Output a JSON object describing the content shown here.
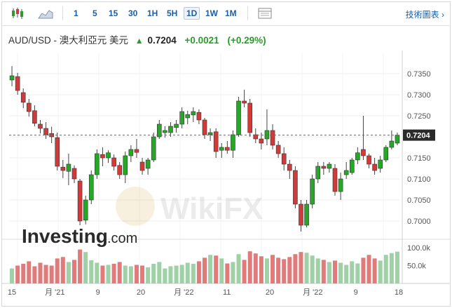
{
  "toolbar": {
    "buttons": [
      "1",
      "5",
      "15",
      "30",
      "1H",
      "5H",
      "1D",
      "1W",
      "1M"
    ],
    "active": "1D",
    "right_label": "技術圖表"
  },
  "header": {
    "pair": "AUD/USD - 澳大利亞元 美元",
    "last": "0.7204",
    "change": "+0.0021",
    "change_pct": "(+0.29%)"
  },
  "branding": {
    "logo_main": "Investing",
    "logo_suffix": ".com",
    "watermark": "WikiFX"
  },
  "colors": {
    "up": "#27a727",
    "down": "#d23a3a",
    "vol_up": "#9fd0a6",
    "vol_down": "#e07b7b",
    "grid": "#ececec"
  },
  "chart_data": {
    "type": "candlestick",
    "last_price_label": "0.7204",
    "price_ticks": [
      "0.7350",
      "0.7300",
      "0.7250",
      "0.7200",
      "0.7150",
      "0.7100",
      "0.7050",
      "0.7000"
    ],
    "volume_ticks": [
      "100.0k",
      "50.0k"
    ],
    "x_labels": [
      "15",
      "月 '21",
      "9",
      "20",
      "月 '22",
      "11",
      "20",
      "月 '22",
      "9",
      "18"
    ],
    "ylim": [
      0.6965,
      0.7385
    ],
    "candles": [
      [
        0.7335,
        0.7368,
        0.732,
        0.7345
      ],
      [
        0.7343,
        0.7352,
        0.73,
        0.731
      ],
      [
        0.7305,
        0.7315,
        0.7268,
        0.7282
      ],
      [
        0.728,
        0.729,
        0.7248,
        0.726
      ],
      [
        0.7262,
        0.7275,
        0.7225,
        0.7232
      ],
      [
        0.723,
        0.724,
        0.7208,
        0.722
      ],
      [
        0.722,
        0.7235,
        0.7195,
        0.7205
      ],
      [
        0.7208,
        0.7224,
        0.7185,
        0.72
      ],
      [
        0.7198,
        0.721,
        0.712,
        0.713
      ],
      [
        0.7128,
        0.7145,
        0.7102,
        0.712
      ],
      [
        0.7118,
        0.716,
        0.7085,
        0.7135
      ],
      [
        0.7125,
        0.7132,
        0.709,
        0.71
      ],
      [
        0.7095,
        0.71,
        0.699,
        0.7
      ],
      [
        0.7002,
        0.706,
        0.6992,
        0.705
      ],
      [
        0.705,
        0.712,
        0.704,
        0.711
      ],
      [
        0.711,
        0.717,
        0.71,
        0.716
      ],
      [
        0.7158,
        0.7175,
        0.713,
        0.715
      ],
      [
        0.715,
        0.7168,
        0.7138,
        0.7162
      ],
      [
        0.715,
        0.7158,
        0.712,
        0.713
      ],
      [
        0.7132,
        0.714,
        0.71,
        0.711
      ],
      [
        0.711,
        0.7165,
        0.709,
        0.7155
      ],
      [
        0.7155,
        0.718,
        0.714,
        0.717
      ],
      [
        0.717,
        0.7195,
        0.715,
        0.7163
      ],
      [
        0.714,
        0.715,
        0.711,
        0.712
      ],
      [
        0.7125,
        0.715,
        0.711,
        0.7145
      ],
      [
        0.7145,
        0.721,
        0.714,
        0.72
      ],
      [
        0.72,
        0.724,
        0.7195,
        0.723
      ],
      [
        0.721,
        0.7225,
        0.7198,
        0.7215
      ],
      [
        0.721,
        0.7235,
        0.72,
        0.7225
      ],
      [
        0.7222,
        0.724,
        0.721,
        0.723
      ],
      [
        0.723,
        0.727,
        0.722,
        0.726
      ],
      [
        0.7245,
        0.7262,
        0.723,
        0.7253
      ],
      [
        0.7252,
        0.727,
        0.7235,
        0.726
      ],
      [
        0.7258,
        0.7265,
        0.723,
        0.724
      ],
      [
        0.724,
        0.7245,
        0.7195,
        0.7205
      ],
      [
        0.7205,
        0.722,
        0.719,
        0.721
      ],
      [
        0.7212,
        0.722,
        0.715,
        0.7165
      ],
      [
        0.7168,
        0.7185,
        0.715,
        0.7175
      ],
      [
        0.7175,
        0.719,
        0.716,
        0.7168
      ],
      [
        0.7168,
        0.7215,
        0.715,
        0.7205
      ],
      [
        0.7205,
        0.7295,
        0.72,
        0.7285
      ],
      [
        0.7285,
        0.7312,
        0.727,
        0.728
      ],
      [
        0.728,
        0.729,
        0.72,
        0.721
      ],
      [
        0.7205,
        0.722,
        0.7185,
        0.7195
      ],
      [
        0.7195,
        0.721,
        0.717,
        0.7185
      ],
      [
        0.7195,
        0.7265,
        0.718,
        0.7215
      ],
      [
        0.7215,
        0.723,
        0.717,
        0.718
      ],
      [
        0.718,
        0.719,
        0.715,
        0.716
      ],
      [
        0.716,
        0.7175,
        0.712,
        0.7135
      ],
      [
        0.7135,
        0.7145,
        0.71,
        0.712
      ],
      [
        0.712,
        0.713,
        0.703,
        0.704
      ],
      [
        0.704,
        0.705,
        0.6975,
        0.699
      ],
      [
        0.699,
        0.705,
        0.6985,
        0.704
      ],
      [
        0.704,
        0.711,
        0.703,
        0.71
      ],
      [
        0.71,
        0.714,
        0.709,
        0.713
      ],
      [
        0.713,
        0.714,
        0.711,
        0.7125
      ],
      [
        0.7125,
        0.714,
        0.7115,
        0.7135
      ],
      [
        0.7125,
        0.7135,
        0.706,
        0.707
      ],
      [
        0.707,
        0.7115,
        0.705,
        0.71
      ],
      [
        0.711,
        0.714,
        0.71,
        0.712
      ],
      [
        0.7115,
        0.715,
        0.711,
        0.7145
      ],
      [
        0.7145,
        0.7175,
        0.7135,
        0.7162
      ],
      [
        0.717,
        0.725,
        0.7145,
        0.7155
      ],
      [
        0.7155,
        0.716,
        0.7125,
        0.7135
      ],
      [
        0.7135,
        0.715,
        0.711,
        0.712
      ],
      [
        0.7125,
        0.7155,
        0.7115,
        0.7145
      ],
      [
        0.7145,
        0.718,
        0.714,
        0.7175
      ],
      [
        0.7175,
        0.7215,
        0.717,
        0.719
      ],
      [
        0.7185,
        0.721,
        0.718,
        0.7204
      ]
    ],
    "volumes": [
      42,
      50,
      55,
      62,
      48,
      58,
      52,
      50,
      70,
      74,
      60,
      66,
      95,
      88,
      65,
      58,
      50,
      52,
      55,
      60,
      50,
      48,
      52,
      50,
      45,
      55,
      60,
      42,
      48,
      50,
      52,
      58,
      55,
      62,
      72,
      80,
      78,
      70,
      56,
      60,
      82,
      66,
      90,
      84,
      76,
      70,
      80,
      72,
      68,
      74,
      82,
      88,
      86,
      78,
      70,
      66,
      60,
      64,
      58,
      52,
      62,
      56,
      72,
      80,
      70,
      64,
      80,
      85,
      89
    ]
  }
}
